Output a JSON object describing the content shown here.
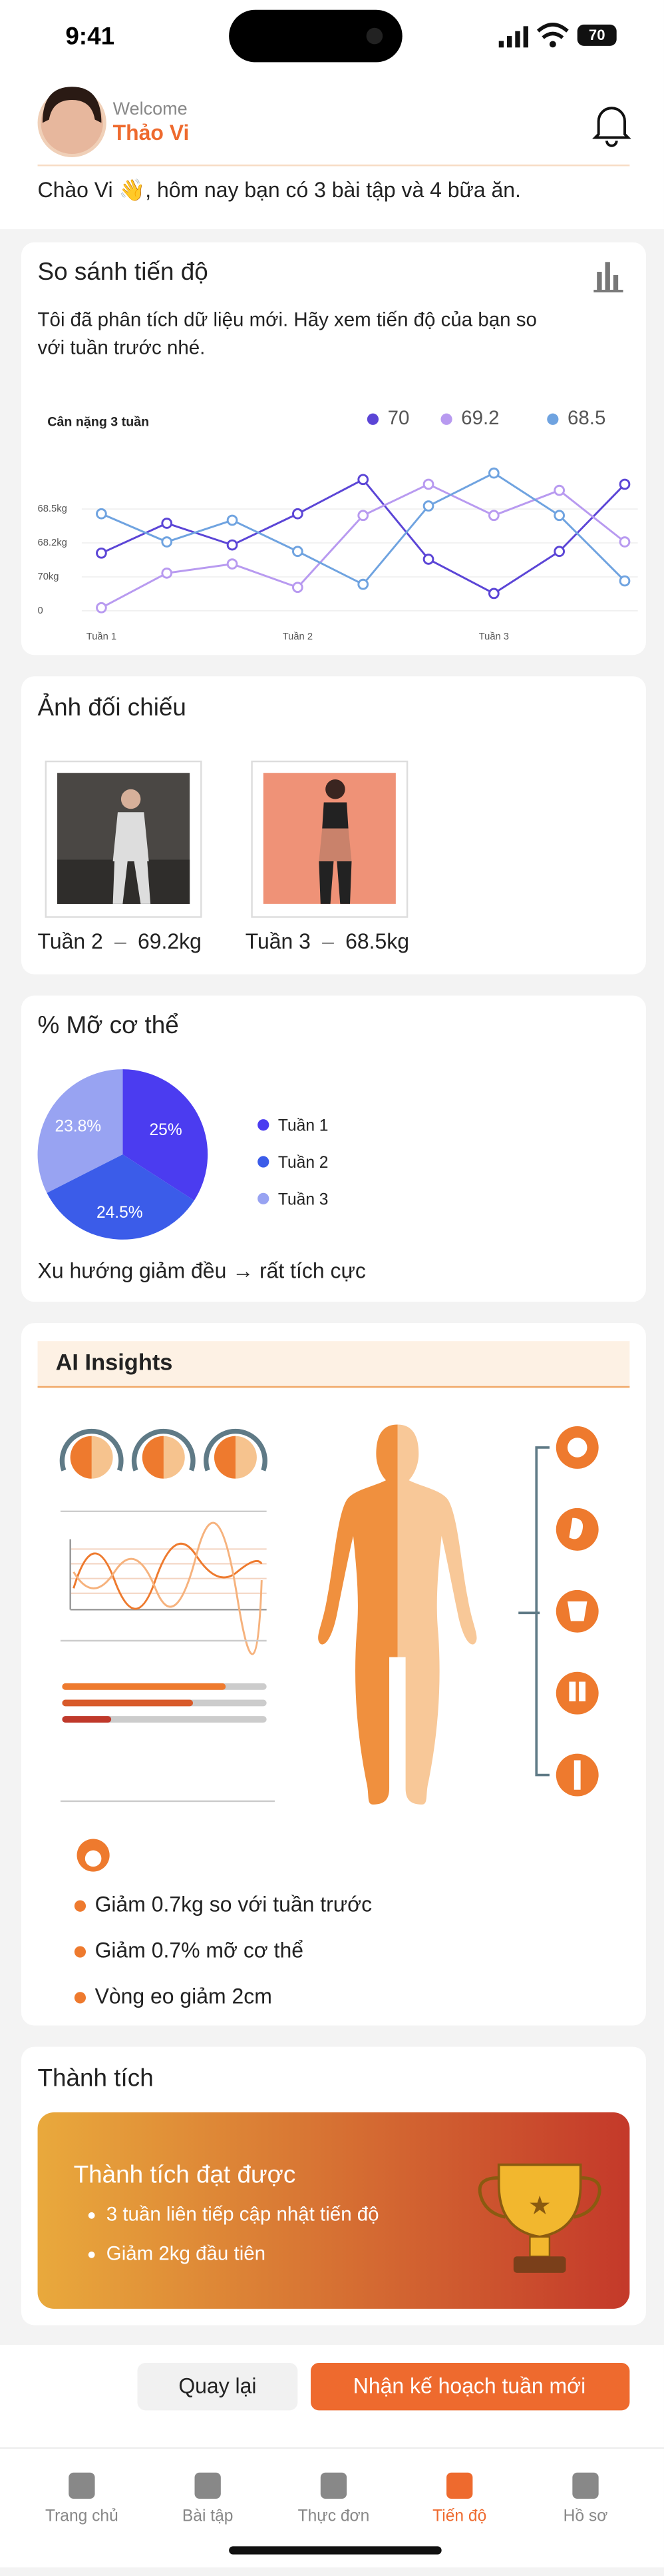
{
  "status": {
    "time": "9:41",
    "battery": "70"
  },
  "header": {
    "welcome": "Welcome",
    "name": "Thảo Vi",
    "greeting": "Chào Vi 👋, hôm nay bạn có 3 bài tập và 4 bữa ăn."
  },
  "progress": {
    "title": "So sánh tiến độ",
    "description": [
      "Tôi đã phân tích dữ liệu mới. Hãy xem tiến độ của bạn so",
      "với tuần trước nhé."
    ]
  },
  "chart_data": [
    {
      "type": "line",
      "title": "Cân nặng 3 tuần",
      "categories": [
        "Tuần 1",
        null,
        null,
        "Tuần 2",
        null,
        null,
        "Tuần 3",
        null,
        null
      ],
      "ycategories": [
        "0",
        "70kg",
        "68.2kg",
        "68.5kg"
      ],
      "ylim": [
        0,
        4.2
      ],
      "grid": true,
      "series": [
        {
          "name": "70",
          "color": "#5b45d6",
          "values": [
            1.7,
            2.58,
            1.94,
            2.86,
            3.87,
            1.52,
            0.51,
            1.75,
            3.73
          ]
        },
        {
          "name": "69.2",
          "color": "#b89af0",
          "values": [
            0.09,
            1.11,
            1.38,
            0.69,
            2.81,
            3.73,
            2.81,
            3.55,
            2.03
          ]
        },
        {
          "name": "68.5",
          "color": "#6fa3e0",
          "values": [
            2.86,
            2.03,
            2.67,
            1.75,
            0.78,
            3.09,
            4.06,
            2.81,
            0.88
          ]
        }
      ]
    },
    {
      "type": "pie",
      "categories": [
        "Tuần 1",
        "Tuần 2",
        "Tuần 3"
      ],
      "values": [
        25,
        24.5,
        23.8
      ],
      "value_labels": [
        "25%",
        "24.5%",
        "23.8%"
      ],
      "colors": [
        "#4b3cf0",
        "#3b5ce9",
        "#98a3f2"
      ]
    }
  ],
  "photos": {
    "title": "Ảnh đối chiếu",
    "items": [
      {
        "week": "Tuần 2",
        "weight": "69.2kg"
      },
      {
        "week": "Tuần 3",
        "weight": "68.5kg"
      }
    ],
    "dash": "–"
  },
  "bodyfat": {
    "title": "% Mỡ cơ thể",
    "note": "Xu hướng giảm đều → rất tích cực"
  },
  "insights": {
    "title": "AI Insights",
    "items": [
      "Giảm 0.7kg so với tuần trước",
      "Giảm 0.7% mỡ cơ thể",
      "Vòng eo giảm 2cm"
    ]
  },
  "achievements": {
    "title": "Thành tích",
    "banner_title": "Thành tích đạt được",
    "items": [
      "3 tuần liên tiếp cập nhật tiến độ",
      "Giảm 2kg đầu tiên"
    ]
  },
  "actions": {
    "back": "Quay lại",
    "next": "Nhận kế hoạch tuần mới"
  },
  "tabs": [
    {
      "label": "Trang chủ"
    },
    {
      "label": "Bài tập"
    },
    {
      "label": "Thực đơn"
    },
    {
      "label": "Tiến độ",
      "active": true
    },
    {
      "label": "Hồ sơ"
    }
  ]
}
